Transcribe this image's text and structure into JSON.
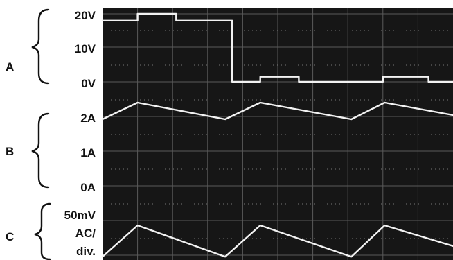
{
  "chart_data": {
    "type": "line",
    "title": "",
    "grid": true,
    "colors": {
      "screen": "#161616",
      "grid": "#5a5a5a",
      "trace": "#f2f2f2"
    },
    "channels": [
      {
        "name": "A",
        "tick_labels": [
          "20V",
          "10V",
          "0V"
        ],
        "ylim": [
          0,
          20
        ],
        "unit": "V",
        "x": [
          0.0,
          1.0,
          1.0,
          2.1,
          2.1,
          3.7,
          3.7,
          4.5,
          4.5,
          5.6,
          5.6,
          7.3,
          7.3,
          8.0,
          8.0,
          9.3,
          9.3,
          10.0
        ],
        "y": [
          18,
          18,
          20,
          20,
          18,
          18,
          0,
          0,
          1.5,
          1.5,
          0,
          0,
          0,
          0,
          1.5,
          1.5,
          0,
          0
        ],
        "x_high": [
          [
            0.0,
            0.95
          ],
          [
            3.5,
            4.5
          ],
          [
            7.1,
            8.05
          ]
        ],
        "x_low": [
          [
            1.0,
            3.5
          ],
          [
            4.55,
            7.1
          ],
          [
            8.1,
            10.0
          ]
        ],
        "high_value": 20,
        "low_value": 0
      },
      {
        "name": "B",
        "tick_labels": [
          "2A",
          "1A",
          "0A"
        ],
        "ylim": [
          0,
          2
        ],
        "unit": "A",
        "x": [
          0.0,
          1.0,
          3.5,
          4.5,
          7.1,
          8.05,
          10.0
        ],
        "y": [
          1.6,
          2.0,
          1.6,
          2.0,
          1.6,
          2.0,
          1.7
        ]
      },
      {
        "name": "C",
        "tick_labels": [
          "50mV",
          "AC/",
          "div."
        ],
        "x": [
          0.0,
          1.0,
          3.5,
          4.5,
          7.1,
          8.05,
          10.0
        ],
        "y": [
          -1.1,
          0.95,
          -1.1,
          0.95,
          -1.1,
          0.95,
          -0.4
        ]
      }
    ]
  }
}
